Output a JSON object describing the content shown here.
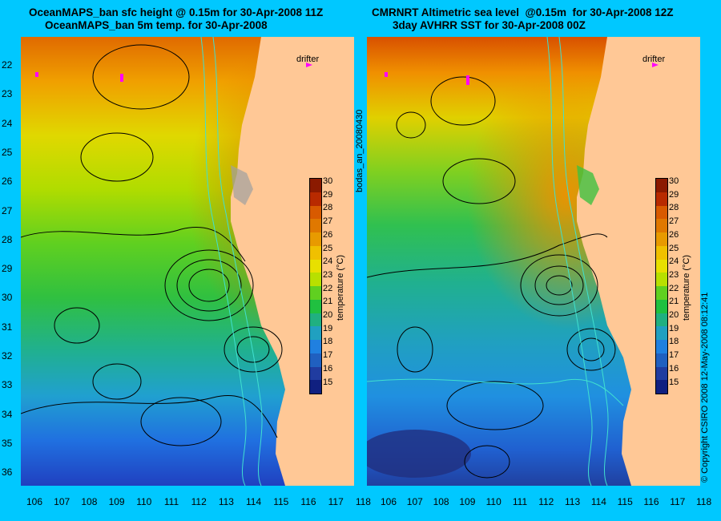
{
  "left": {
    "title_line1": "OceanMAPS_ban sfc height @ 0.15m for 30-Apr-2008 11Z",
    "title_line2": "OceanMAPS_ban 5m temp. for 30-Apr-2008",
    "drifter": "drifter"
  },
  "right": {
    "title_line1": "CMRNRT Altimetric sea level  @0.15m  for 30-Apr-2008 12Z",
    "title_line2": "3day AVHRR SST for 30-Apr-2008 00Z",
    "drifter": "drifter"
  },
  "colorbar": {
    "title": "temperature (°C)",
    "ticks": [
      "30",
      "29",
      "28",
      "27",
      "26",
      "25",
      "24",
      "23",
      "22",
      "21",
      "20",
      "19",
      "18",
      "17",
      "16",
      "15"
    ],
    "colors": [
      "#8b1a00",
      "#b82a00",
      "#d85a00",
      "#e07800",
      "#e89a00",
      "#f0c000",
      "#e8e000",
      "#b8e000",
      "#60d020",
      "#20c040",
      "#20b080",
      "#20a0c0",
      "#2080e0",
      "#2060c0",
      "#203ca0",
      "#102080"
    ]
  },
  "y_ticks": [
    "22",
    "23",
    "24",
    "25",
    "26",
    "27",
    "28",
    "29",
    "30",
    "31",
    "32",
    "33",
    "34",
    "35",
    "36"
  ],
  "x_ticks": [
    "106",
    "107",
    "108",
    "109",
    "110",
    "111",
    "112",
    "113",
    "114",
    "115",
    "116",
    "117",
    "118"
  ],
  "side_label_run": "bodas_an_20080430",
  "side_label_copyright": "© Copyright CSIRO 2008   12-May-2008 08:12:41",
  "colors": {
    "background": "#00c8ff",
    "land": "#ffc896",
    "drifter": "#ff00ff",
    "contour": "#000000",
    "bathy": "#40e0d0"
  }
}
